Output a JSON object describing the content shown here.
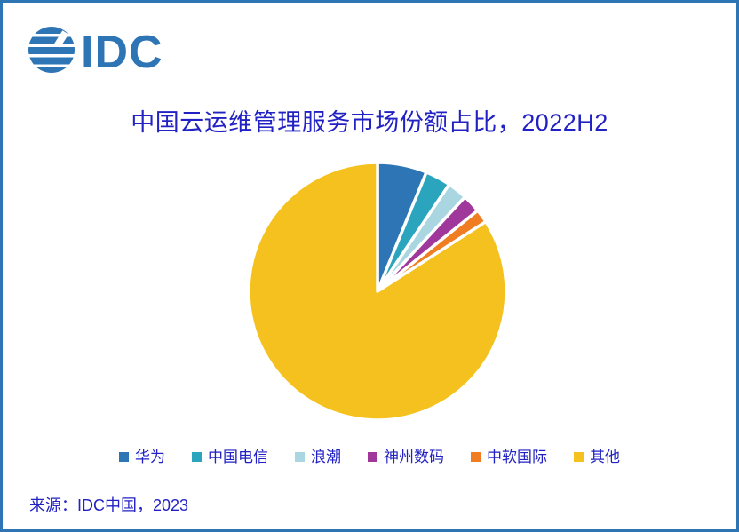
{
  "page": {
    "border_color": "#2E75B6",
    "background": "#FFFFFF"
  },
  "logo": {
    "text": "IDC",
    "color": "#2E75B6"
  },
  "title": {
    "text": "中国云运维管理服务市场份额占比，2022H2",
    "color": "#2222C4"
  },
  "source": {
    "text": "来源：IDC中国，2023"
  },
  "chart_data": {
    "type": "pie",
    "title": "中国云运维管理服务市场份额占比，2022H2",
    "labels": [
      "华为",
      "中国电信",
      "浪潮",
      "神州数码",
      "中软国际",
      "其他"
    ],
    "values": [
      6.2,
      3.2,
      2.5,
      2.3,
      1.7,
      84.1
    ],
    "colors": [
      "#2E75B6",
      "#2BA5BE",
      "#A9D6E0",
      "#A0379B",
      "#F07D21",
      "#F4C11E"
    ],
    "start_angle_deg": -90,
    "direction": "clockwise",
    "slice_gap_color": "#FFFFFF",
    "legend_position": "bottom",
    "legend_text_color": "#2222C4"
  }
}
